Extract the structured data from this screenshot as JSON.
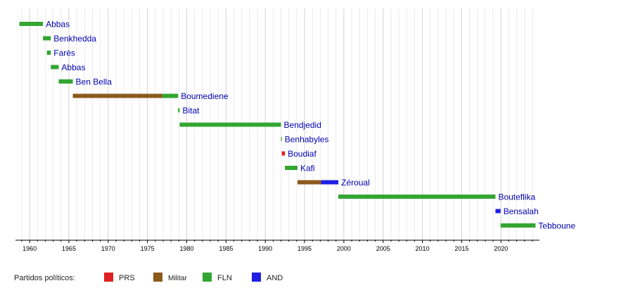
{
  "chart_data": {
    "type": "timeline",
    "x_axis": {
      "min": 1958.2,
      "max": 2024.9,
      "ticks": [
        1960,
        1965,
        1970,
        1975,
        1980,
        1985,
        1990,
        1995,
        2000,
        2005,
        2010,
        2015,
        2020
      ],
      "minor_step": 1
    },
    "grid": true,
    "parties": [
      {
        "key": "PRS",
        "label": "PRS",
        "color": "#e02020"
      },
      {
        "key": "Militar",
        "label": "Militar",
        "color": "#8b5a1e"
      },
      {
        "key": "FLN",
        "label": "FLN",
        "color": "#33a532"
      },
      {
        "key": "AND",
        "label": "AND",
        "color": "#1f1fe6"
      }
    ],
    "rows": [
      {
        "name": "Abbas",
        "segments": [
          {
            "start": 1958.7,
            "end": 1961.7,
            "party": "FLN"
          }
        ]
      },
      {
        "name": "Benkhedda",
        "segments": [
          {
            "start": 1961.7,
            "end": 1962.7,
            "party": "FLN"
          }
        ]
      },
      {
        "name": "Farès",
        "segments": [
          {
            "start": 1962.2,
            "end": 1962.7,
            "party": "FLN"
          }
        ]
      },
      {
        "name": "Abbas",
        "segments": [
          {
            "start": 1962.7,
            "end": 1963.7,
            "party": "FLN"
          }
        ]
      },
      {
        "name": "Ben Bella",
        "segments": [
          {
            "start": 1963.7,
            "end": 1965.5,
            "party": "FLN"
          }
        ]
      },
      {
        "name": "Boumediene",
        "segments": [
          {
            "start": 1965.5,
            "end": 1976.9,
            "party": "Militar"
          },
          {
            "start": 1976.9,
            "end": 1978.9,
            "party": "FLN"
          }
        ]
      },
      {
        "name": "Bitat",
        "segments": [
          {
            "start": 1978.9,
            "end": 1979.1,
            "party": "FLN"
          }
        ]
      },
      {
        "name": "Bendjedid",
        "segments": [
          {
            "start": 1979.1,
            "end": 1992.0,
            "party": "FLN"
          }
        ]
      },
      {
        "name": "Benhabyles",
        "segments": [
          {
            "start": 1992.0,
            "end": 1992.1,
            "party": "FLN"
          }
        ]
      },
      {
        "name": "Boudiaf",
        "segments": [
          {
            "start": 1992.1,
            "end": 1992.5,
            "party": "PRS"
          }
        ]
      },
      {
        "name": "Kafi",
        "segments": [
          {
            "start": 1992.5,
            "end": 1994.1,
            "party": "FLN"
          }
        ]
      },
      {
        "name": "Zéroual",
        "segments": [
          {
            "start": 1994.1,
            "end": 1997.1,
            "party": "Militar"
          },
          {
            "start": 1997.1,
            "end": 1999.3,
            "party": "AND"
          }
        ]
      },
      {
        "name": "Bouteflika",
        "segments": [
          {
            "start": 1999.3,
            "end": 2019.3,
            "party": "FLN"
          }
        ]
      },
      {
        "name": "Bensalah",
        "segments": [
          {
            "start": 2019.3,
            "end": 2019.95,
            "party": "AND"
          }
        ]
      },
      {
        "name": "Tebboune",
        "segments": [
          {
            "start": 2019.95,
            "end": 2024.4,
            "party": "FLN"
          }
        ]
      }
    ],
    "legend": {
      "title": "Partidos políticos:",
      "placement": "bottom-left"
    }
  }
}
